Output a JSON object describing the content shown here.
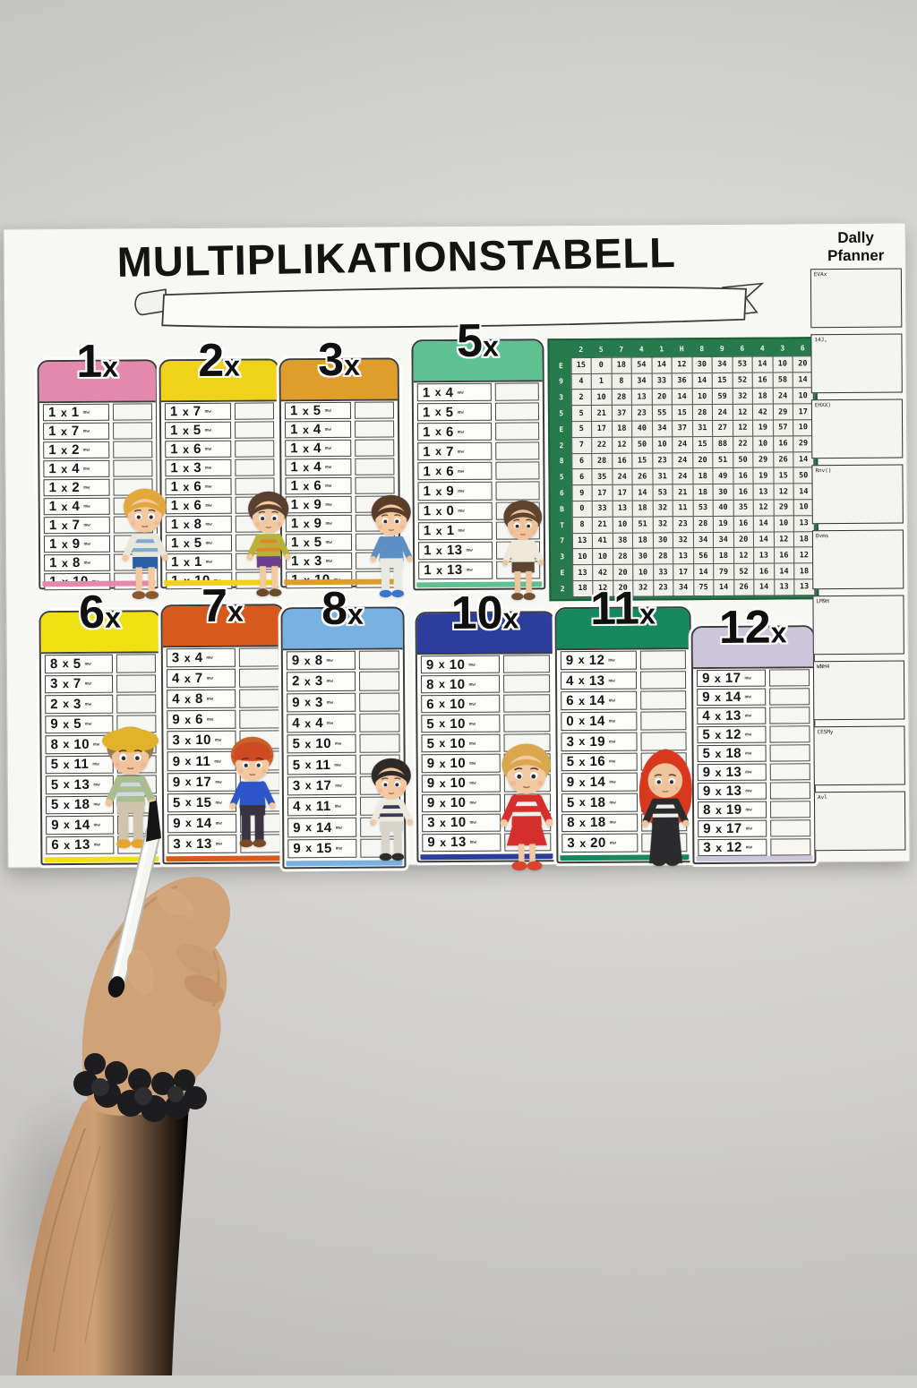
{
  "poster": {
    "title": "MULTIPLIKATIONSTABELL",
    "banner_text": ""
  },
  "planner": {
    "title": "Dally Pfanner",
    "boxes": [
      {
        "label": "EVAx"
      },
      {
        "label": "14J,"
      },
      {
        "label": "EHXX)"
      },
      {
        "label": "Rnv()"
      },
      {
        "label": "Dvms"
      },
      {
        "label": "LM9H"
      },
      {
        "label": "WNH4"
      },
      {
        "label": "CESMy"
      },
      {
        "label": "Avl"
      }
    ]
  },
  "config": {
    "scribble": "mw",
    "times_symbol": "x"
  },
  "tables": [
    {
      "id": "1x",
      "number": "1",
      "suffix": "x",
      "color": "#e489ad",
      "rows": [
        [
          "1",
          "1"
        ],
        [
          "1",
          "7"
        ],
        [
          "1",
          "2"
        ],
        [
          "1",
          "4"
        ],
        [
          "1",
          "2"
        ],
        [
          "1",
          "4"
        ],
        [
          "1",
          "7"
        ],
        [
          "1",
          "9"
        ],
        [
          "1",
          "8"
        ],
        [
          "1",
          "10"
        ]
      ]
    },
    {
      "id": "2x",
      "number": "2",
      "suffix": "x",
      "color": "#f0d318",
      "rows": [
        [
          "1",
          "7"
        ],
        [
          "1",
          "5"
        ],
        [
          "1",
          "6"
        ],
        [
          "1",
          "3"
        ],
        [
          "1",
          "6"
        ],
        [
          "1",
          "6"
        ],
        [
          "1",
          "8"
        ],
        [
          "1",
          "5"
        ],
        [
          "1",
          "1"
        ],
        [
          "1",
          "10"
        ]
      ]
    },
    {
      "id": "3x",
      "number": "3",
      "suffix": "x",
      "color": "#df9d2b",
      "rows": [
        [
          "1",
          "5"
        ],
        [
          "1",
          "4"
        ],
        [
          "1",
          "4"
        ],
        [
          "1",
          "4"
        ],
        [
          "1",
          "6"
        ],
        [
          "1",
          "9"
        ],
        [
          "1",
          "9"
        ],
        [
          "1",
          "5"
        ],
        [
          "1",
          "3"
        ],
        [
          "1",
          "10"
        ]
      ]
    },
    {
      "id": "5x",
      "number": "5",
      "suffix": "x",
      "color": "#5fc092",
      "rows": [
        [
          "1",
          "4"
        ],
        [
          "1",
          "5"
        ],
        [
          "1",
          "6"
        ],
        [
          "1",
          "7"
        ],
        [
          "1",
          "6"
        ],
        [
          "1",
          "9"
        ],
        [
          "1",
          "0"
        ],
        [
          "1",
          "1"
        ],
        [
          "1",
          "13"
        ],
        [
          "1",
          "13"
        ]
      ]
    },
    {
      "id": "6x",
      "number": "6",
      "suffix": "x",
      "color": "#f1e113",
      "rows": [
        [
          "8",
          "5"
        ],
        [
          "3",
          "7"
        ],
        [
          "2",
          "3"
        ],
        [
          "9",
          "5"
        ],
        [
          "8",
          "10"
        ],
        [
          "5",
          "11"
        ],
        [
          "5",
          "13"
        ],
        [
          "5",
          "18"
        ],
        [
          "9",
          "14"
        ],
        [
          "6",
          "13"
        ]
      ]
    },
    {
      "id": "7x",
      "number": "7",
      "suffix": "x",
      "color": "#d8591c",
      "rows": [
        [
          "3",
          "4"
        ],
        [
          "4",
          "7"
        ],
        [
          "4",
          "8"
        ],
        [
          "9",
          "6"
        ],
        [
          "3",
          "10"
        ],
        [
          "9",
          "11"
        ],
        [
          "9",
          "17"
        ],
        [
          "5",
          "15"
        ],
        [
          "9",
          "14"
        ],
        [
          "3",
          "13"
        ]
      ]
    },
    {
      "id": "8x",
      "number": "8",
      "suffix": "x",
      "color": "#79b1e3",
      "rows": [
        [
          "9",
          "8"
        ],
        [
          "2",
          "3"
        ],
        [
          "9",
          "3"
        ],
        [
          "4",
          "4"
        ],
        [
          "5",
          "10"
        ],
        [
          "5",
          "11"
        ],
        [
          "3",
          "17"
        ],
        [
          "4",
          "11"
        ],
        [
          "9",
          "14"
        ],
        [
          "9",
          "15"
        ]
      ]
    },
    {
      "id": "10x",
      "number": "10",
      "suffix": "x",
      "color": "#2c3e9d",
      "rows": [
        [
          "9",
          "10"
        ],
        [
          "8",
          "10"
        ],
        [
          "6",
          "10"
        ],
        [
          "5",
          "10"
        ],
        [
          "5",
          "10"
        ],
        [
          "9",
          "10"
        ],
        [
          "9",
          "10"
        ],
        [
          "9",
          "10"
        ],
        [
          "3",
          "10"
        ],
        [
          "9",
          "13"
        ]
      ]
    },
    {
      "id": "11x",
      "number": "11",
      "suffix": "x",
      "color": "#17885e",
      "rows": [
        [
          "9",
          "12"
        ],
        [
          "4",
          "13"
        ],
        [
          "6",
          "14"
        ],
        [
          "0",
          "14"
        ],
        [
          "3",
          "19"
        ],
        [
          "5",
          "16"
        ],
        [
          "9",
          "14"
        ],
        [
          "5",
          "18"
        ],
        [
          "8",
          "18"
        ],
        [
          "3",
          "20"
        ]
      ]
    },
    {
      "id": "12x",
      "number": "12",
      "suffix": "x",
      "color": "#cdc5da",
      "rows": [
        [
          "9",
          "17"
        ],
        [
          "9",
          "14"
        ],
        [
          "4",
          "13"
        ],
        [
          "5",
          "12"
        ],
        [
          "5",
          "18"
        ],
        [
          "9",
          "13"
        ],
        [
          "9",
          "13"
        ],
        [
          "8",
          "19"
        ],
        [
          "9",
          "17"
        ],
        [
          "3",
          "12"
        ]
      ]
    }
  ],
  "grid": {
    "green": "#267a4c",
    "header": [
      "2",
      "5",
      "7",
      "4",
      "1",
      "H",
      "8",
      "9",
      "6",
      "4",
      "3",
      "6"
    ],
    "row_labels": [
      "E",
      "9",
      "3",
      "5",
      "E",
      "2",
      "8",
      "5",
      "6",
      "B",
      "T",
      "7",
      "3",
      "E",
      "2"
    ],
    "cells": [
      [
        "15",
        "0",
        "18",
        "54",
        "14",
        "12",
        "30",
        "34",
        "53",
        "14",
        "10",
        "20"
      ],
      [
        "4",
        "1",
        "8",
        "34",
        "33",
        "36",
        "14",
        "15",
        "52",
        "16",
        "58",
        "14"
      ],
      [
        "2",
        "10",
        "28",
        "13",
        "20",
        "14",
        "10",
        "59",
        "32",
        "18",
        "24",
        "10"
      ],
      [
        "5",
        "21",
        "37",
        "23",
        "55",
        "15",
        "28",
        "24",
        "12",
        "42",
        "29",
        "17"
      ],
      [
        "5",
        "17",
        "18",
        "40",
        "34",
        "37",
        "31",
        "27",
        "12",
        "19",
        "57",
        "10"
      ],
      [
        "7",
        "22",
        "12",
        "50",
        "10",
        "24",
        "15",
        "88",
        "22",
        "10",
        "16",
        "29"
      ],
      [
        "6",
        "28",
        "16",
        "15",
        "23",
        "24",
        "20",
        "51",
        "50",
        "29",
        "26",
        "14"
      ],
      [
        "6",
        "35",
        "24",
        "26",
        "31",
        "24",
        "18",
        "49",
        "16",
        "19",
        "15",
        "50"
      ],
      [
        "9",
        "17",
        "17",
        "14",
        "53",
        "21",
        "18",
        "30",
        "16",
        "13",
        "12",
        "14"
      ],
      [
        "0",
        "33",
        "13",
        "18",
        "32",
        "11",
        "53",
        "40",
        "35",
        "12",
        "29",
        "10"
      ],
      [
        "8",
        "21",
        "10",
        "51",
        "32",
        "23",
        "28",
        "19",
        "16",
        "14",
        "10",
        "13"
      ],
      [
        "13",
        "41",
        "38",
        "18",
        "30",
        "32",
        "34",
        "34",
        "20",
        "14",
        "12",
        "18"
      ],
      [
        "10",
        "10",
        "28",
        "30",
        "28",
        "13",
        "56",
        "18",
        "12",
        "13",
        "16",
        "12"
      ],
      [
        "13",
        "42",
        "20",
        "10",
        "33",
        "17",
        "14",
        "79",
        "52",
        "16",
        "14",
        "18"
      ],
      [
        "18",
        "12",
        "20",
        "32",
        "23",
        "34",
        "75",
        "14",
        "26",
        "14",
        "13",
        "13"
      ]
    ]
  },
  "characters": [
    {
      "name": "blonde-boy",
      "hair": "#e3a83b",
      "skin": "#f2c9a0",
      "top": "#e9e6da",
      "stripe": "#7ea8cf",
      "bottom": "#2a5fa8",
      "legs": "#f2c9a0",
      "shoes": "#8a5a2e",
      "hat": "none",
      "bottomType": "shorts"
    },
    {
      "name": "brown-hair-girl",
      "hair": "#5a4031",
      "skin": "#f2c9a0",
      "top": "#b8b23a",
      "stripe": "#e0862f",
      "bottom": "#6a3f8f",
      "legs": "#f2c9a0",
      "shoes": "#6b4a2a",
      "hat": "none",
      "bottomType": "shorts"
    },
    {
      "name": "boy-blue-shirt",
      "hair": "#5a3d28",
      "skin": "#f2c9a0",
      "top": "#5e8fc4",
      "stripe": "",
      "bottom": "#e9e9e4",
      "legs": "#e9e9e4",
      "shoes": "#3a74c9",
      "hat": "none",
      "bottomType": "pants"
    },
    {
      "name": "boy-beige-shirt",
      "hair": "#5e4430",
      "skin": "#f0c49a",
      "top": "#efe8d8",
      "stripe": "",
      "bottom": "#5c4632",
      "legs": "#f0c49a",
      "shoes": "#6e4f33",
      "hat": "none",
      "bottomType": "shorts"
    },
    {
      "name": "yellow-hat-kid",
      "hair": "#9a7a4a",
      "skin": "#f0c49a",
      "top": "#a9bd8f",
      "stripe": "#cfd8e6",
      "bottom": "#cfc4ae",
      "legs": "#cfc4ae",
      "shoes": "#e5a42c",
      "hat": "bucket",
      "hatColor": "#e0b32b",
      "bottomType": "pants"
    },
    {
      "name": "red-cap-kid",
      "hair": "#c9622a",
      "skin": "#f2c9a0",
      "top": "#2c55c9",
      "stripe": "",
      "bottom": "#3a3440",
      "legs": "#3a3440",
      "shoes": "#7a4a28",
      "hat": "cap",
      "hatColor": "#cf4a22",
      "bottomType": "pants"
    },
    {
      "name": "black-hair-boy",
      "hair": "#2e2a28",
      "skin": "#f2c9a0",
      "top": "#eceade",
      "stripe": "#3a3a56",
      "bottom": "#d8d5c8",
      "legs": "#d8d5c8",
      "shoes": "#2c2c2c",
      "hat": "none",
      "bottomType": "pants"
    },
    {
      "name": "blonde-girl-red-skirt",
      "hair": "#d9a84e",
      "skin": "#f2c9a0",
      "top": "#d42f2a",
      "stripe": "#f2f2ee",
      "bottom": "#d42f2a",
      "legs": "#f2c9a0",
      "shoes": "#d8452c",
      "hat": "none",
      "bottomType": "skirt"
    },
    {
      "name": "red-hijab-girl",
      "hair": "#4a3226",
      "skin": "#f0c49a",
      "top": "#2b2b2e",
      "stripe": "#efefec",
      "bottom": "#2b2b2e",
      "legs": "#2b2b2e",
      "shoes": "#2b2b2e",
      "hat": "hijab",
      "hatColor": "#d8381e",
      "bottomType": "dress"
    }
  ]
}
